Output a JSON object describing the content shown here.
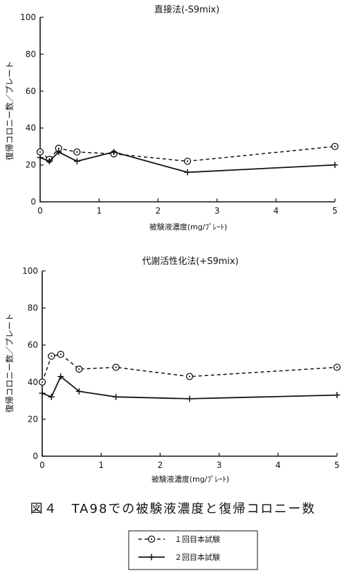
{
  "figure_caption": "図４　TA98での被験液濃度と復帰コロニー数",
  "legend": [
    {
      "marker": "circle-dot",
      "line": "dashed",
      "label": "１回目本試験"
    },
    {
      "marker": "plus",
      "line": "solid",
      "label": "２回目本試験"
    }
  ],
  "chart_data": [
    {
      "type": "line",
      "title": "直接法(-S9mix)",
      "xlabel": "被験液濃度(mg/ﾌﾟﾚｰﾄ)",
      "ylabel": "復帰コロニー数／プレート",
      "xlim": [
        0,
        5
      ],
      "ylim": [
        0,
        100
      ],
      "xticks": [
        0,
        1,
        2,
        3,
        4,
        5
      ],
      "yticks": [
        0,
        20,
        40,
        60,
        80,
        100
      ],
      "grid": false,
      "series": [
        {
          "name": "１回目本試験",
          "x": [
            0,
            0.156,
            0.313,
            0.625,
            1.25,
            2.5,
            5
          ],
          "y": [
            27,
            23,
            29,
            27,
            26,
            22,
            30
          ]
        },
        {
          "name": "２回目本試験",
          "x": [
            0,
            0.156,
            0.313,
            0.625,
            1.25,
            2.5,
            5
          ],
          "y": [
            24,
            22,
            27,
            22,
            27,
            16,
            20
          ]
        }
      ]
    },
    {
      "type": "line",
      "title": "代謝活性化法(+S9mix)",
      "xlabel": "被験液濃度(mg/ﾌﾟﾚｰﾄ)",
      "ylabel": "復帰コロニー数／プレート",
      "xlim": [
        0,
        5
      ],
      "ylim": [
        0,
        100
      ],
      "xticks": [
        0,
        1,
        2,
        3,
        4,
        5
      ],
      "yticks": [
        0,
        20,
        40,
        60,
        80,
        100
      ],
      "grid": false,
      "series": [
        {
          "name": "１回目本試験",
          "x": [
            0,
            0.156,
            0.313,
            0.625,
            1.25,
            2.5,
            5
          ],
          "y": [
            40,
            54,
            55,
            47,
            48,
            43,
            48
          ]
        },
        {
          "name": "２回目本試験",
          "x": [
            0,
            0.156,
            0.313,
            0.625,
            1.25,
            2.5,
            5
          ],
          "y": [
            34,
            32,
            43,
            35,
            32,
            31,
            33
          ]
        }
      ]
    }
  ]
}
